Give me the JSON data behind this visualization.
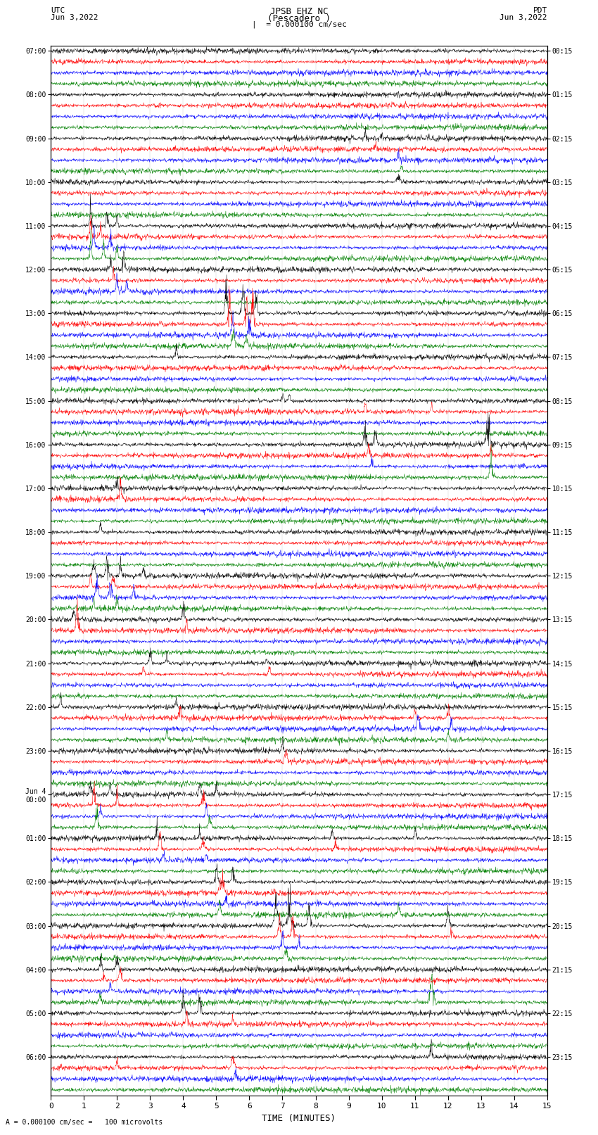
{
  "title_line1": "JPSB EHZ NC",
  "title_line2": "(Pescadero )",
  "scale_text": "= 0.000100 cm/sec",
  "label_left_line1": "UTC",
  "label_left_line2": "Jun 3,2022",
  "label_right_line1": "PDT",
  "label_right_line2": "Jun 3,2022",
  "bottom_label": "A = 0.000100 cm/sec =   100 microvolts",
  "xlabel": "TIME (MINUTES)",
  "utc_labels": [
    "07:00",
    "08:00",
    "09:00",
    "10:00",
    "11:00",
    "12:00",
    "13:00",
    "14:00",
    "15:00",
    "16:00",
    "17:00",
    "18:00",
    "19:00",
    "20:00",
    "21:00",
    "22:00",
    "23:00",
    "Jun 4\n00:00",
    "01:00",
    "02:00",
    "03:00",
    "04:00",
    "05:00",
    "06:00"
  ],
  "pdt_labels": [
    "00:15",
    "01:15",
    "02:15",
    "03:15",
    "04:15",
    "05:15",
    "06:15",
    "07:15",
    "08:15",
    "09:15",
    "10:15",
    "11:15",
    "12:15",
    "13:15",
    "14:15",
    "15:15",
    "16:15",
    "17:15",
    "18:15",
    "19:15",
    "20:15",
    "21:15",
    "22:15",
    "23:15"
  ],
  "num_rows": 96,
  "rows_per_hour": 4,
  "trace_color_cycle": [
    "black",
    "red",
    "blue",
    "green"
  ],
  "bg_color": "white",
  "xmin": 0,
  "xmax": 15,
  "xticks": [
    0,
    1,
    2,
    3,
    4,
    5,
    6,
    7,
    8,
    9,
    10,
    11,
    12,
    13,
    14,
    15
  ],
  "fig_width": 8.5,
  "fig_height": 16.13,
  "dpi": 100
}
